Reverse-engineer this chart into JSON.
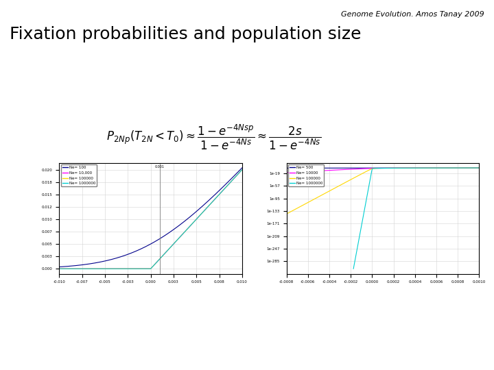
{
  "title": "Fixation probabilities and population size",
  "header": "Genome Evolution. Amos Tanay 2009",
  "bg_color": "#ffffff",
  "title_color": "#000000",
  "header_color": "#000000",
  "title_fontsize": 18,
  "header_fontsize": 8,
  "plot1": {
    "N_values": [
      100,
      10000,
      100000,
      1000000
    ],
    "colors": [
      "#00008B",
      "#FF00FF",
      "#FFD700",
      "#00CED1"
    ],
    "labels": [
      "Ne= 100",
      "Ne= 10,000",
      "Ne= 100000",
      "Ne= 1000000"
    ],
    "s_min": -0.01,
    "s_max": 0.01
  },
  "plot2": {
    "N_values": [
      500,
      10000,
      100000,
      1000000
    ],
    "colors": [
      "#00008B",
      "#FF00FF",
      "#FFD700",
      "#00CED1"
    ],
    "labels": [
      "Ne= 500",
      "Ne= 10000",
      "Ne= 100000",
      "Ne= 1000000"
    ],
    "s_min": -0.0008,
    "s_max": 0.001
  }
}
